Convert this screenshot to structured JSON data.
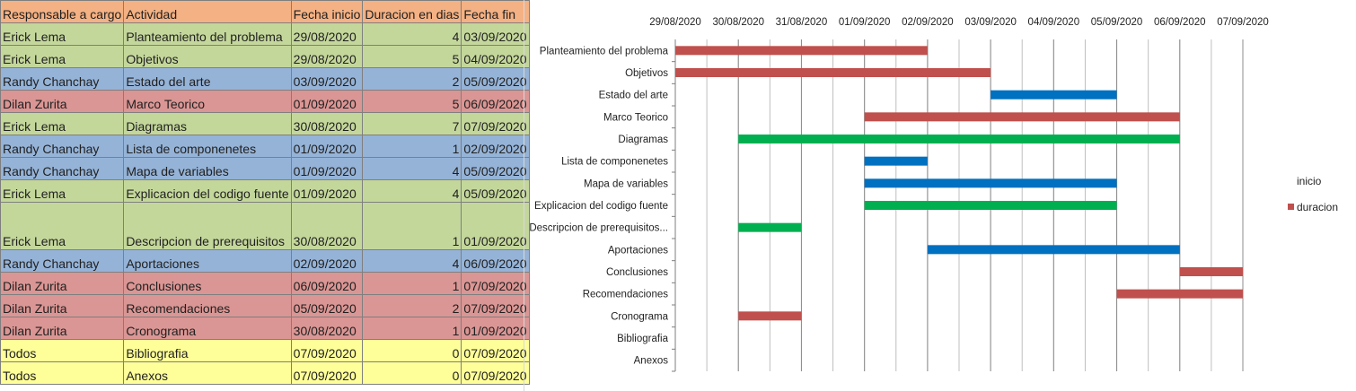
{
  "sheet": {
    "headers": [
      "Responsable a cargo",
      "Actividad",
      "Fecha inicio",
      "Duracion en dias",
      "Fecha fin"
    ],
    "rows": [
      {
        "resp": "Erick Lema",
        "act": "Planteamiento del problema",
        "start": "29/08/2020",
        "dur": "4",
        "end": "03/09/2020",
        "color": "green"
      },
      {
        "resp": "Erick Lema",
        "act": "Objetivos",
        "start": "29/08/2020",
        "dur": "5",
        "end": "04/09/2020",
        "color": "green"
      },
      {
        "resp": "Randy Chanchay",
        "act": "Estado del arte",
        "start": "03/09/2020",
        "dur": "2",
        "end": "05/09/2020",
        "color": "blue"
      },
      {
        "resp": "Dilan Zurita",
        "act": "Marco Teorico",
        "start": "01/09/2020",
        "dur": "5",
        "end": "06/09/2020",
        "color": "red"
      },
      {
        "resp": "Erick Lema",
        "act": "Diagramas",
        "start": "30/08/2020",
        "dur": "7",
        "end": "07/09/2020",
        "color": "green"
      },
      {
        "resp": "Randy Chanchay",
        "act": "Lista de componenetes",
        "start": "01/09/2020",
        "dur": "1",
        "end": "02/09/2020",
        "color": "blue"
      },
      {
        "resp": "Randy Chanchay",
        "act": "Mapa de variables",
        "start": "01/09/2020",
        "dur": "4",
        "end": "05/09/2020",
        "color": "blue"
      },
      {
        "resp": "Erick Lema",
        "act": "Explicacion del codigo fuente",
        "start": "01/09/2020",
        "dur": "4",
        "end": "05/09/2020",
        "color": "green"
      },
      {
        "resp": "Erick Lema",
        "act": "Descripcion de prerequisitos",
        "start": "30/08/2020",
        "dur": "1",
        "end": "01/09/2020",
        "color": "green",
        "tall": true
      },
      {
        "resp": "Randy Chanchay",
        "act": "Aportaciones",
        "start": "02/09/2020",
        "dur": "4",
        "end": "06/09/2020",
        "color": "blue"
      },
      {
        "resp": "Dilan Zurita",
        "act": "Conclusiones",
        "start": "06/09/2020",
        "dur": "1",
        "end": "07/09/2020",
        "color": "red"
      },
      {
        "resp": "Dilan Zurita",
        "act": "Recomendaciones",
        "start": "05/09/2020",
        "dur": "2",
        "end": "07/09/2020",
        "color": "red"
      },
      {
        "resp": "Dilan Zurita",
        "act": "Cronograma",
        "start": "30/08/2020",
        "dur": "1",
        "end": "01/09/2020",
        "color": "red"
      },
      {
        "resp": "Todos",
        "act": "Bibliografia",
        "start": "07/09/2020",
        "dur": "0",
        "end": "07/09/2020",
        "color": "yellow"
      },
      {
        "resp": "Todos",
        "act": "Anexos",
        "start": "07/09/2020",
        "dur": "0",
        "end": "07/09/2020",
        "color": "yellow"
      }
    ]
  },
  "chart_data": {
    "type": "bar",
    "orientation": "horizontal-stacked",
    "x_ticks": [
      "29/08/2020",
      "30/08/2020",
      "31/08/2020",
      "01/09/2020",
      "02/09/2020",
      "03/09/2020",
      "04/09/2020",
      "05/09/2020",
      "06/09/2020",
      "07/09/2020"
    ],
    "x_range": [
      "29/08/2020",
      "07/09/2020"
    ],
    "x_axis_position": "top",
    "minor_grid_divisions_per_day": 2,
    "grid": true,
    "legend_placement": "right",
    "categories": [
      "Planteamiento del problema",
      "Objetivos",
      "Estado del arte",
      "Marco Teorico",
      "Diagramas",
      "Lista de componenetes",
      "Mapa de variables",
      "Explicacion del codigo fuente",
      "Descripcion de prerequisitos...",
      "Aportaciones",
      "Conclusiones",
      "Recomendaciones",
      "Cronograma",
      "Bibliografia",
      "Anexos"
    ],
    "series": [
      {
        "name": "inicio",
        "values": [
          "29/08/2020",
          "29/08/2020",
          "03/09/2020",
          "01/09/2020",
          "30/08/2020",
          "01/09/2020",
          "01/09/2020",
          "01/09/2020",
          "30/08/2020",
          "02/09/2020",
          "06/09/2020",
          "05/09/2020",
          "30/08/2020",
          "07/09/2020",
          "07/09/2020"
        ],
        "visible": false
      },
      {
        "name": "duracion",
        "values": [
          4,
          5,
          2,
          5,
          7,
          1,
          4,
          4,
          1,
          4,
          1,
          2,
          1,
          0,
          0
        ]
      }
    ],
    "bar_colors": [
      "#c0504d",
      "#c0504d",
      "#0070c0",
      "#c0504d",
      "#00b050",
      "#0070c0",
      "#0070c0",
      "#00b050",
      "#00b050",
      "#0070c0",
      "#c0504d",
      "#c0504d",
      "#c0504d",
      "#c0504d",
      "#c0504d"
    ],
    "legend_colors": {
      "inicio": "none",
      "duracion": "#c0504d"
    }
  }
}
